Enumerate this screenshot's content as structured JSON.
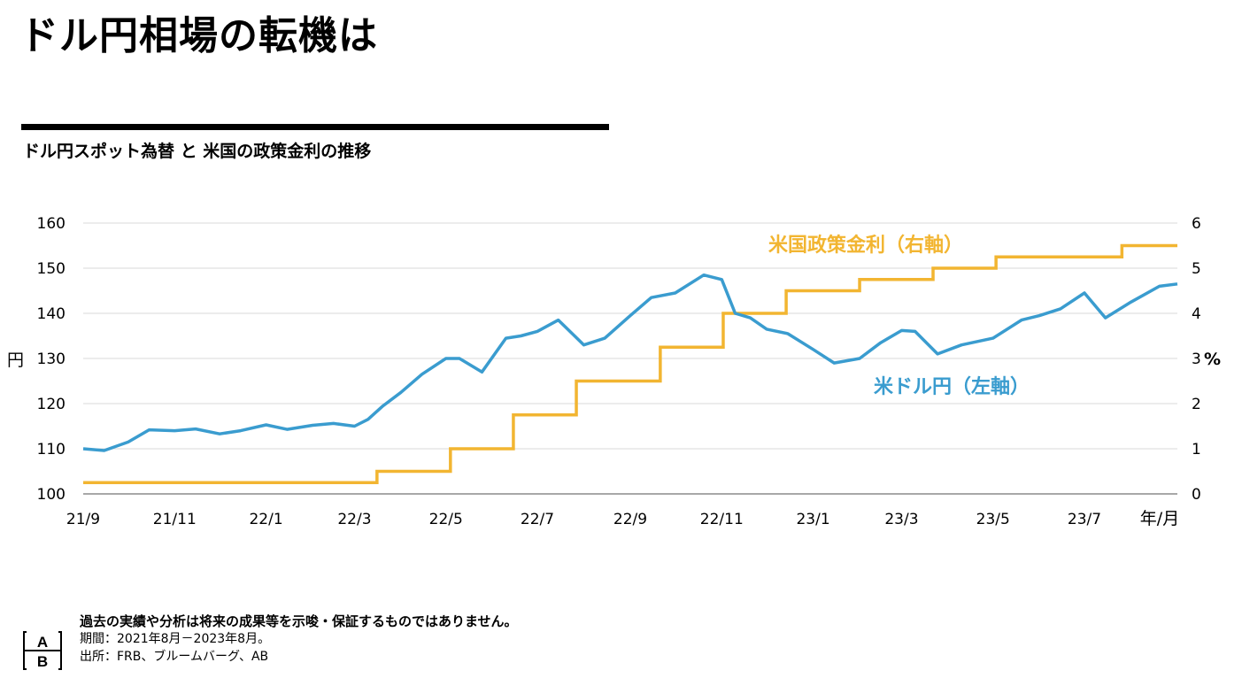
{
  "title": "ドル円相場の転機は",
  "subtitle": "ドル円スポット為替 と 米国の政策金利の推移",
  "footer": {
    "disclaimer": "過去の実績や分析は将来の成果等を示唆・保証するものではありません。",
    "period": "期間：2021年8月－2023年8月。",
    "source": "出所：FRB、ブルームバーグ、AB"
  },
  "logo": {
    "top": "A",
    "bottom": "B"
  },
  "colors": {
    "usdjpy": "#3a9ccf",
    "policy_rate": "#f2b531",
    "grid": "#d9d9d9",
    "axis": "#8c8c8c"
  },
  "chart_data": {
    "type": "line",
    "x_ticks": [
      "21/9",
      "21/11",
      "22/1",
      "22/3",
      "22/5",
      "22/7",
      "22/9",
      "22/11",
      "23/1",
      "23/3",
      "23/5",
      "23/7"
    ],
    "x_axis_unit": "年/月",
    "xlim": [
      "2021-09",
      "2023-09"
    ],
    "left_axis": {
      "unit": "円",
      "ylim": [
        100,
        160
      ],
      "ticks": [
        "100",
        "110",
        "120",
        "130",
        "140",
        "150",
        "160"
      ]
    },
    "right_axis": {
      "unit": "%",
      "ylim": [
        0,
        6
      ],
      "ticks": [
        "0",
        "1",
        "2",
        "3",
        "4",
        "5",
        "6"
      ]
    },
    "series": [
      {
        "name": "米ドル円（左軸）",
        "axis": "left",
        "x": [
          "2021-09-01",
          "2021-09-15",
          "2021-10-01",
          "2021-10-15",
          "2021-11-01",
          "2021-11-15",
          "2021-12-01",
          "2021-12-15",
          "2022-01-01",
          "2022-01-15",
          "2022-02-01",
          "2022-02-15",
          "2022-03-01",
          "2022-03-10",
          "2022-03-20",
          "2022-04-01",
          "2022-04-15",
          "2022-05-01",
          "2022-05-10",
          "2022-05-25",
          "2022-06-10",
          "2022-06-20",
          "2022-07-01",
          "2022-07-15",
          "2022-08-01",
          "2022-08-15",
          "2022-09-01",
          "2022-09-15",
          "2022-10-01",
          "2022-10-20",
          "2022-11-01",
          "2022-11-10",
          "2022-11-20",
          "2022-12-01",
          "2022-12-15",
          "2023-01-01",
          "2023-01-15",
          "2023-02-01",
          "2023-02-15",
          "2023-03-01",
          "2023-03-10",
          "2023-03-25",
          "2023-04-10",
          "2023-05-01",
          "2023-05-20",
          "2023-06-01",
          "2023-06-15",
          "2023-07-01",
          "2023-07-15",
          "2023-08-01",
          "2023-08-20",
          "2023-09-01"
        ],
        "y": [
          110.0,
          109.6,
          111.5,
          114.2,
          114.0,
          114.4,
          113.3,
          114.0,
          115.3,
          114.3,
          115.2,
          115.6,
          115.0,
          116.5,
          119.5,
          122.5,
          126.5,
          130.0,
          130.0,
          127.0,
          134.5,
          135.0,
          136.0,
          138.5,
          133.0,
          134.5,
          139.5,
          143.5,
          144.5,
          148.5,
          147.5,
          140.0,
          139.0,
          136.5,
          135.5,
          132.0,
          129.0,
          130.0,
          133.5,
          136.2,
          136.0,
          131.0,
          133.0,
          134.5,
          138.5,
          139.5,
          141.0,
          144.5,
          139.0,
          142.5,
          146.0,
          146.5
        ]
      },
      {
        "name": "米国政策金利（右軸）",
        "axis": "right",
        "x": [
          "2021-09-01",
          "2022-03-16",
          "2022-05-04",
          "2022-06-15",
          "2022-07-27",
          "2022-09-21",
          "2022-11-02",
          "2022-12-14",
          "2023-02-01",
          "2023-03-22",
          "2023-05-03",
          "2023-07-26",
          "2023-09-01"
        ],
        "y": [
          0.25,
          0.5,
          1.0,
          1.75,
          2.5,
          3.25,
          4.0,
          4.5,
          4.75,
          5.0,
          5.25,
          5.5,
          5.5
        ]
      }
    ]
  }
}
